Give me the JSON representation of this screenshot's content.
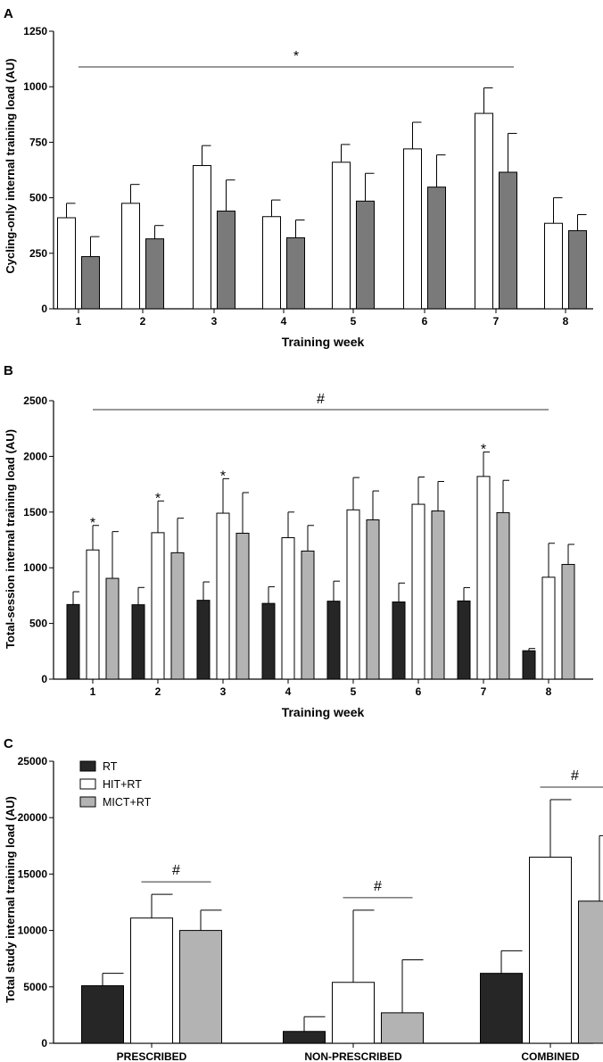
{
  "chart_data": [
    {
      "panel": "A",
      "type": "bar",
      "title": "",
      "xlabel": "Training week",
      "ylabel": "Cycling-only internal training load (AU)",
      "ylim": [
        0,
        1250
      ],
      "yticks": [
        0,
        250,
        500,
        750,
        1000,
        1250
      ],
      "categories": [
        "1",
        "2",
        "3",
        "4",
        "5",
        "6",
        "7",
        "8"
      ],
      "series": [
        {
          "name": "HIT+RT",
          "color": "#ffffff",
          "values": [
            410,
            475,
            645,
            415,
            660,
            720,
            880,
            385
          ],
          "errors": [
            65,
            85,
            90,
            75,
            80,
            120,
            115,
            115
          ]
        },
        {
          "name": "MICT+RT",
          "color": "#7a7a7a",
          "values": [
            235,
            315,
            440,
            320,
            485,
            548,
            615,
            352
          ],
          "errors": [
            90,
            60,
            140,
            80,
            125,
            145,
            175,
            72
          ]
        }
      ],
      "annotations": [
        {
          "text": "*",
          "span": [
            "1",
            "7"
          ]
        }
      ]
    },
    {
      "panel": "B",
      "type": "bar",
      "title": "",
      "xlabel": "Training week",
      "ylabel": "Total-session internal training load (AU)",
      "ylim": [
        0,
        2500
      ],
      "yticks": [
        0,
        500,
        1000,
        1500,
        2000,
        2500
      ],
      "categories": [
        "1",
        "2",
        "3",
        "4",
        "5",
        "6",
        "7",
        "8"
      ],
      "series": [
        {
          "name": "RT",
          "color": "#262626",
          "values": [
            670,
            668,
            708,
            680,
            700,
            693,
            702,
            255
          ],
          "errors": [
            115,
            155,
            165,
            150,
            180,
            170,
            120,
            20
          ]
        },
        {
          "name": "HIT+RT",
          "color": "#ffffff",
          "values": [
            1160,
            1315,
            1490,
            1270,
            1520,
            1570,
            1820,
            915
          ],
          "errors": [
            220,
            285,
            310,
            230,
            290,
            245,
            220,
            305
          ]
        },
        {
          "name": "MICT+RT",
          "color": "#b3b3b3",
          "values": [
            905,
            1135,
            1310,
            1150,
            1430,
            1510,
            1495,
            1030
          ],
          "errors": [
            420,
            310,
            365,
            230,
            260,
            265,
            290,
            180
          ]
        }
      ],
      "annotations": [
        {
          "text": "#",
          "span": [
            "1",
            "8"
          ]
        },
        {
          "text": "*",
          "category": "1"
        },
        {
          "text": "*",
          "category": "2"
        },
        {
          "text": "*",
          "category": "3"
        },
        {
          "text": "*",
          "category": "7"
        }
      ]
    },
    {
      "panel": "C",
      "type": "bar",
      "title": "",
      "xlabel": "",
      "ylabel": "Total study internal training load (AU)",
      "ylim": [
        0,
        25000
      ],
      "yticks": [
        0,
        5000,
        10000,
        15000,
        20000,
        25000
      ],
      "categories": [
        "PRESCRIBED",
        "NON-PRESCRIBED",
        "COMBINED"
      ],
      "legend": {
        "placement": "top-left",
        "entries": [
          "RT",
          "HIT+RT",
          "MICT+RT"
        ]
      },
      "series": [
        {
          "name": "RT",
          "color": "#262626",
          "values": [
            5100,
            1050,
            6200
          ],
          "errors": [
            1100,
            1300,
            2000
          ]
        },
        {
          "name": "HIT+RT",
          "color": "#ffffff",
          "values": [
            11100,
            5400,
            16500
          ],
          "errors": [
            2100,
            6400,
            5100
          ]
        },
        {
          "name": "MICT+RT",
          "color": "#b3b3b3",
          "values": [
            10000,
            2700,
            12600
          ],
          "errors": [
            1800,
            4700,
            5800
          ]
        }
      ],
      "annotations": [
        {
          "text": "#",
          "category": "PRESCRIBED"
        },
        {
          "text": "#",
          "category": "NON-PRESCRIBED"
        },
        {
          "text": "#",
          "category": "COMBINED"
        }
      ]
    }
  ]
}
